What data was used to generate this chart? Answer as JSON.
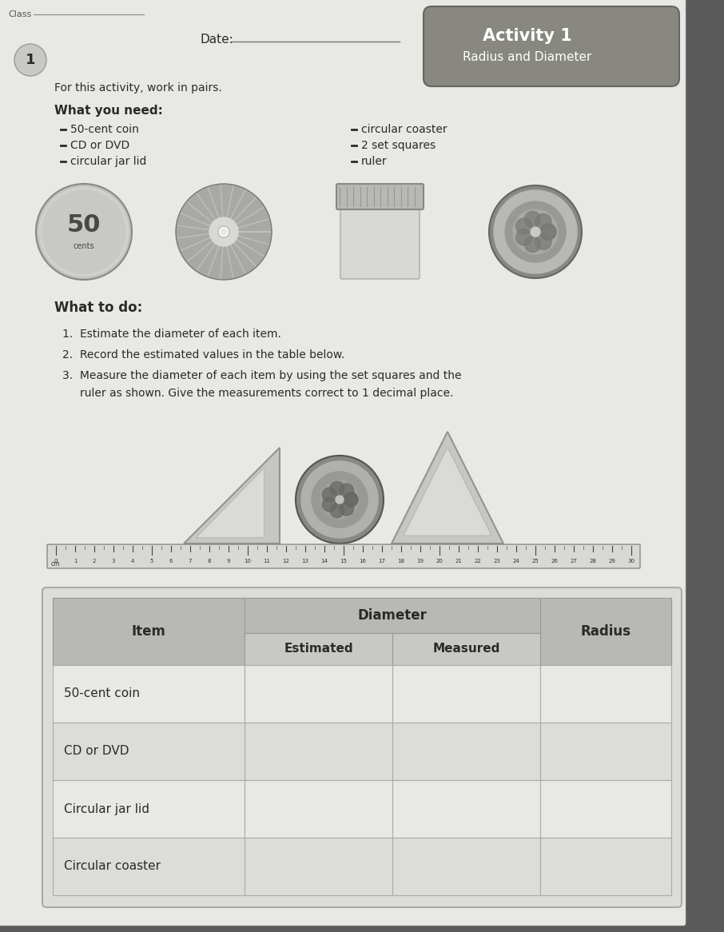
{
  "page_bg": "#5a5a5a",
  "paper_bg": "#e8e8e4",
  "title_box_bg": "#888880",
  "date_label": "Date:",
  "page_number": "1",
  "intro_text": "For this activity, work in pairs.",
  "what_you_need_header": "What you need:",
  "items_left": [
    "50-cent coin",
    "CD or DVD",
    "circular jar lid"
  ],
  "items_right": [
    "circular coaster",
    "2 set squares",
    "ruler"
  ],
  "what_to_do_header": "What to do:",
  "instructions": [
    "Estimate the diameter of each item.",
    "Record the estimated values in the table below.",
    "Measure the diameter of each item by using the set squares and the ruler as shown. Give the measurements correct to 1 decimal place."
  ],
  "table_rows": [
    "50-cent coin",
    "CD or DVD",
    "Circular jar lid",
    "Circular coaster"
  ],
  "header_bg": "#b8b8b4",
  "subheader_bg": "#c8c8c4",
  "row_bg_even": "#e8e8e4",
  "row_bg_odd": "#dcdcd8",
  "dark_text": "#2a2a2a"
}
